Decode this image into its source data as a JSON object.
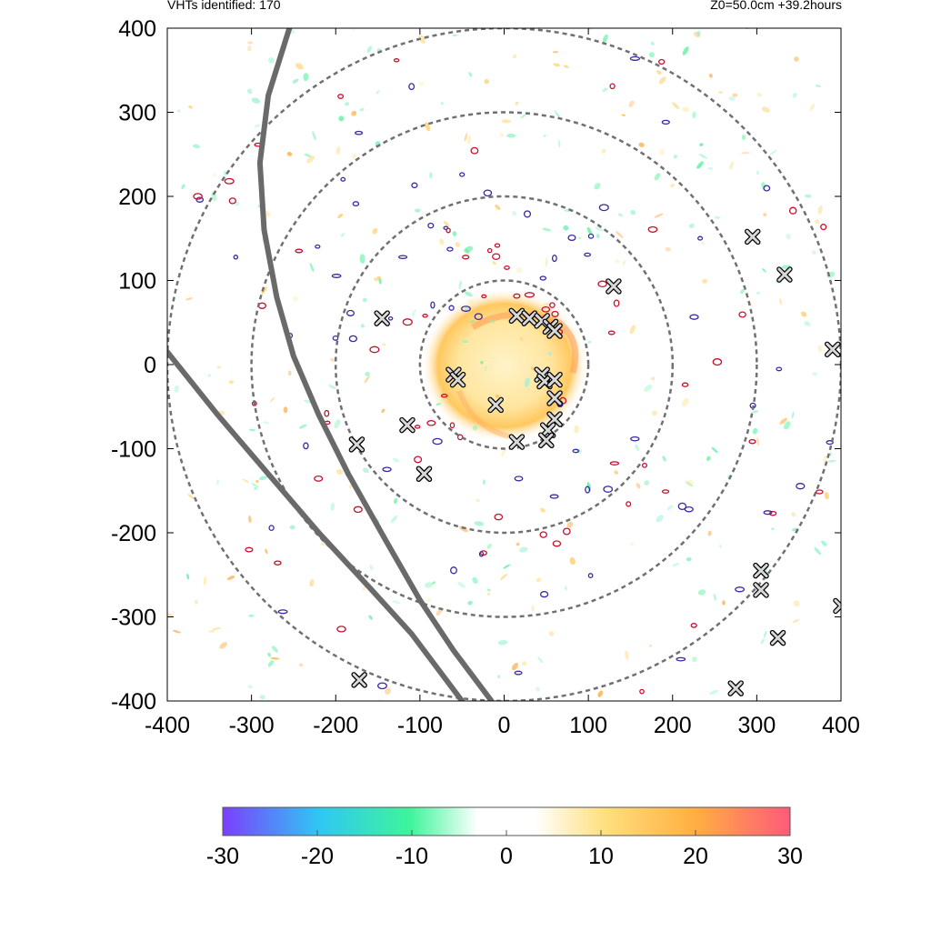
{
  "header": {
    "vht_label": "VHTs identified: 170",
    "time_label": "Z0=50.0cm  +39.2hours"
  },
  "chart_data": {
    "type": "heatmap",
    "xlim": [
      -400,
      400
    ],
    "ylim": [
      -400,
      400
    ],
    "x_ticks": [
      "-400",
      "-300",
      "-200",
      "-100",
      "0",
      "100",
      "200",
      "300",
      "400"
    ],
    "y_ticks": [
      "400",
      "300",
      "200",
      "100",
      "0",
      "-100",
      "-200",
      "-300",
      "-400"
    ],
    "range_rings": [
      100,
      200,
      300,
      400
    ],
    "colorbar": {
      "min": -30,
      "max": 30,
      "ticks": [
        "-30",
        "-20",
        "-10",
        "0",
        "10",
        "20",
        "30"
      ],
      "colors": [
        "#7b3fff",
        "#2fc7f2",
        "#3df59a",
        "#ffffff",
        "#ffffff",
        "#ffe080",
        "#ffb040",
        "#ff5a7a"
      ]
    },
    "vht_markers": [
      [
        15,
        58
      ],
      [
        30,
        55
      ],
      [
        45,
        52
      ],
      [
        55,
        45
      ],
      [
        60,
        40
      ],
      [
        -60,
        -12
      ],
      [
        -55,
        -18
      ],
      [
        45,
        -12
      ],
      [
        48,
        -20
      ],
      [
        60,
        -18
      ],
      [
        -10,
        -48
      ],
      [
        60,
        -65
      ],
      [
        52,
        -78
      ],
      [
        50,
        -90
      ],
      [
        15,
        -92
      ],
      [
        60,
        -40
      ],
      [
        -145,
        55
      ],
      [
        -115,
        -72
      ],
      [
        -175,
        -95
      ],
      [
        -95,
        -130
      ],
      [
        130,
        93
      ],
      [
        295,
        152
      ],
      [
        333,
        107
      ],
      [
        390,
        18
      ],
      [
        305,
        -245
      ],
      [
        305,
        -268
      ],
      [
        325,
        -325
      ],
      [
        275,
        -385
      ],
      [
        400,
        -287
      ],
      [
        -172,
        -375
      ]
    ],
    "tracks": [
      [
        [
          -255,
          400
        ],
        [
          -280,
          320
        ],
        [
          -290,
          240
        ],
        [
          -285,
          160
        ],
        [
          -270,
          80
        ],
        [
          -250,
          10
        ],
        [
          -220,
          -60
        ],
        [
          -185,
          -130
        ],
        [
          -140,
          -210
        ],
        [
          -100,
          -280
        ],
        [
          -60,
          -340
        ],
        [
          -15,
          -400
        ]
      ],
      [
        [
          -400,
          15
        ],
        [
          -340,
          -60
        ],
        [
          -280,
          -130
        ],
        [
          -220,
          -200
        ],
        [
          -160,
          -265
        ],
        [
          -110,
          -320
        ],
        [
          -50,
          -400
        ]
      ]
    ]
  }
}
